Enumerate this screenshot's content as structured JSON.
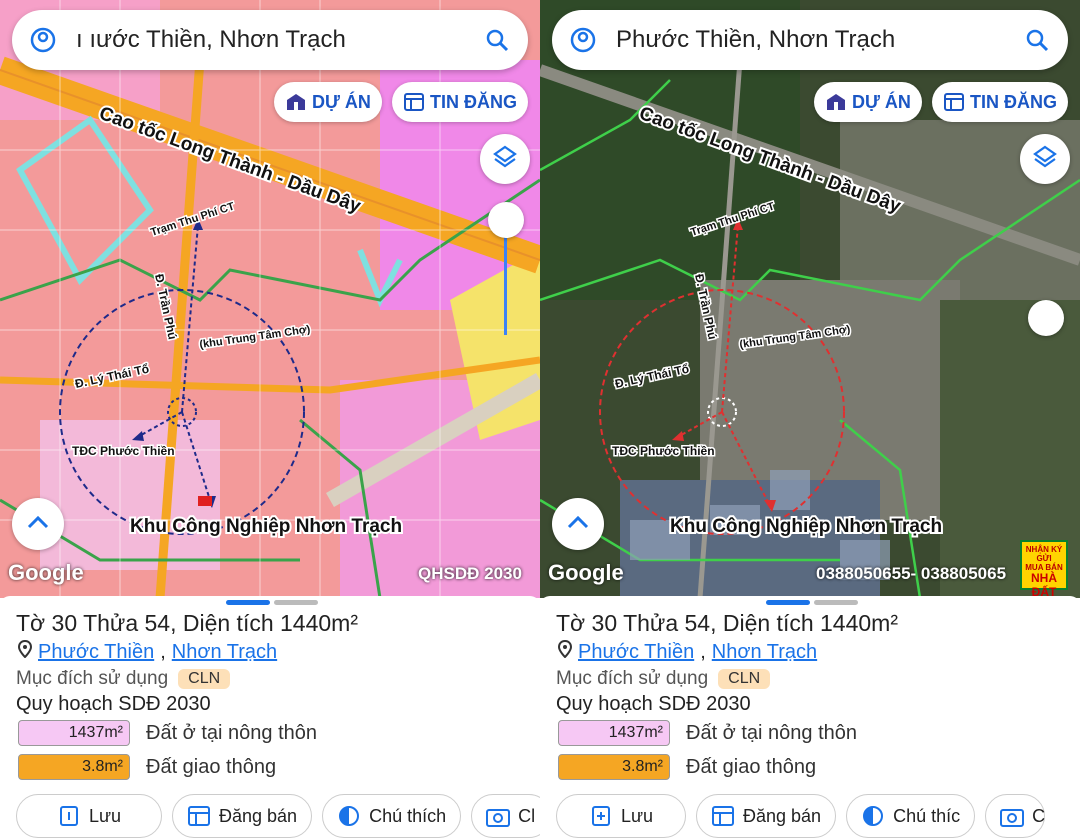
{
  "panels": [
    {
      "search_text": "ı ıước Thiền, Nhơn Trạch",
      "buttons": {
        "du_an": "DỰ ÁN",
        "tin_dang": "TIN ĐĂNG"
      },
      "map_labels": {
        "highway": "Cao tốc Long Thành - Dầu Dây",
        "toll": "Trạm Thu Phí CT",
        "street_tranphu": "Đ. Trần Phú",
        "market": "(khu Trung Tâm Chợ)",
        "street_lythaito": "Đ. Lý Thái Tổ",
        "tdc": "TĐC Phước Thiền",
        "industrial": "Khu Công Nghiệp Nhơn Trạch"
      },
      "google": "Google",
      "caption": "QHSDĐ 2030",
      "parcel_title": "Tờ 30 Thửa 54, Diện tích 1440m²",
      "ward": "Phước Thiền",
      "district": "Nhơn Trạch",
      "purpose_label": "Mục đích sử dụng",
      "purpose_code": "CLN",
      "plan_label": "Quy hoạch SDĐ 2030",
      "land_uses": [
        {
          "area": "1437m²",
          "label": "Đất ở tại nông thôn",
          "color": "#f6c8f4"
        },
        {
          "area": "3.8m²",
          "label": "Đất giao thông",
          "color": "#f5a623"
        }
      ],
      "actions": [
        "Lưu",
        "Đăng bán",
        "Chú thích",
        "Cl"
      ]
    },
    {
      "search_text": "Phước Thiền, Nhơn Trạch",
      "buttons": {
        "du_an": "DỰ ÁN",
        "tin_dang": "TIN ĐĂNG"
      },
      "map_labels": {
        "highway": "Cao tốc Long Thành - Dầu Dây",
        "toll": "Trạm Thu Phí CT",
        "street_tranphu": "Đ. Trần Phú",
        "market": "(khu Trung Tâm Chợ)",
        "street_lythaito": "Đ. Lý Thái Tổ",
        "tdc": "TĐC Phước Thiền",
        "industrial": "Khu Công Nghiệp Nhơn Trạch"
      },
      "google": "Google",
      "caption": "0388050655- 038805065",
      "ad_badge": {
        "line1": "NHẬN KÝ GỬI",
        "line2": "MUA BÁN",
        "line3": "NHÀ ĐẤT"
      },
      "parcel_title": "Tờ 30 Thửa 54, Diện tích 1440m²",
      "ward": "Phước Thiền",
      "district": "Nhơn Trạch",
      "purpose_label": "Mục đích sử dụng",
      "purpose_code": "CLN",
      "plan_label": "Quy hoạch SDĐ 2030",
      "land_uses": [
        {
          "area": "1437m²",
          "label": "Đất ở tại nông thôn",
          "color": "#f6c8f4"
        },
        {
          "area": "3.8m²",
          "label": "Đất giao thông",
          "color": "#f5a623"
        }
      ],
      "actions": [
        "Lưu",
        "Đăng bán",
        "Chú thíc",
        "C"
      ]
    }
  ]
}
